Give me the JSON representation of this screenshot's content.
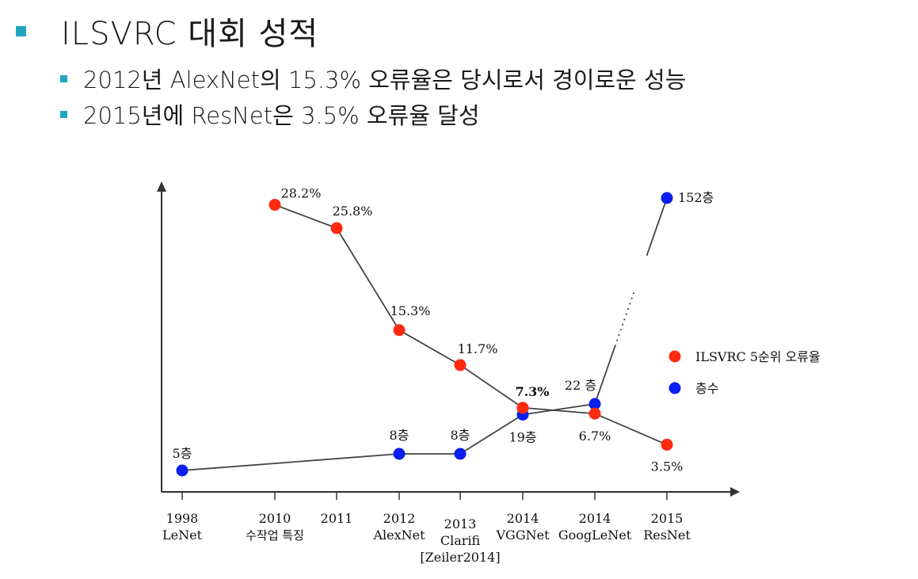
{
  "slide": {
    "title": "ILSVRC 대회 성적",
    "bullets": [
      "2012년 AlexNet의 15.3% 오류율은 당시로서 경이로운 성능",
      "2015년에 ResNet은 3.5% 오류율 달성"
    ],
    "accent_color": "#1fa6bf"
  },
  "chart_data": {
    "type": "line",
    "title": "",
    "xlabel": "",
    "ylabel": "",
    "grid": false,
    "legend_position": "right",
    "categories": [
      [
        "1998",
        "LeNet"
      ],
      [
        "2010",
        "수작업 특징"
      ],
      [
        "2011",
        ""
      ],
      [
        "2012",
        "AlexNet"
      ],
      [
        "2013",
        "Clarifi",
        "[Zeiler2014]"
      ],
      [
        "2014",
        "VGGNet"
      ],
      [
        "2014",
        "GoogLeNet"
      ],
      [
        "2015",
        "ResNet"
      ]
    ],
    "series": [
      {
        "name": "ILSVRC 5순위 오류율",
        "color": "#ff2a10",
        "values": [
          null,
          28.2,
          25.8,
          15.3,
          11.7,
          7.3,
          6.7,
          3.5
        ],
        "labels": [
          "",
          "28.2%",
          "25.8%",
          "15.3%",
          "11.7%",
          "7.3%",
          "6.7%",
          "3.5%"
        ]
      },
      {
        "name": "층수",
        "color": "#0a1ef0",
        "values": [
          5,
          null,
          null,
          8,
          8,
          19,
          22,
          152
        ],
        "labels": [
          "5층",
          "",
          "",
          "8층",
          "8층",
          "19층",
          "22 층",
          "152층"
        ],
        "broken_segment": [
          6,
          7
        ]
      }
    ]
  }
}
